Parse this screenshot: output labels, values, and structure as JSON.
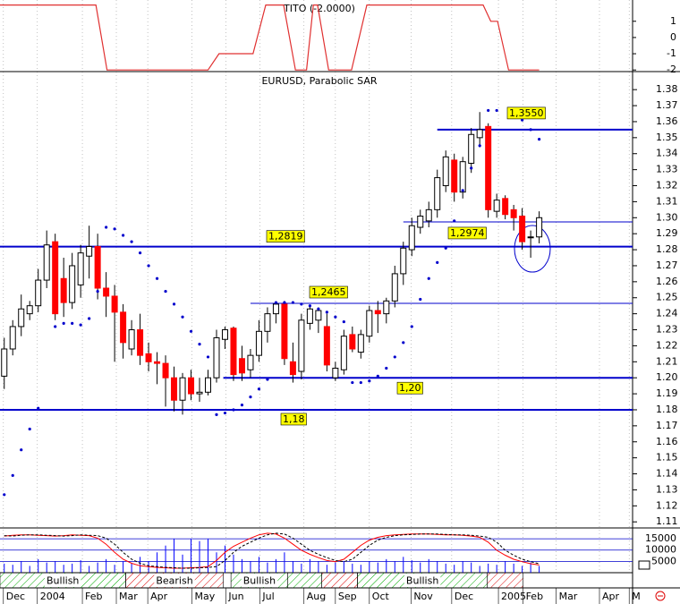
{
  "chart_data": [
    {
      "type": "line",
      "title": "TITO (-2.0000)",
      "color": "#e03030",
      "x": [
        -0.5,
        10.8,
        12.1,
        24.0,
        25.3,
        29.3,
        30.8,
        32.9,
        34.3,
        35.6,
        36.4,
        36.9,
        38.2,
        40.9,
        42.7,
        56.4,
        57.3,
        58.1,
        59.4,
        63.0
      ],
      "values": [
        2,
        2,
        -2,
        -2,
        -1,
        -1,
        2,
        2,
        -2,
        -2,
        2,
        2,
        -2,
        -2,
        2,
        2,
        1,
        1,
        -2,
        -2
      ],
      "xlim": [
        -0.5,
        74
      ],
      "ylim": [
        -2.1,
        2.2
      ],
      "yticks": [
        1,
        0,
        -1,
        -2
      ]
    },
    {
      "type": "candlestick",
      "title": "EURUSD, Parabolic SAR",
      "x": [
        0,
        1,
        2,
        3,
        4,
        5,
        6,
        7,
        8,
        9,
        10,
        11,
        12,
        13,
        14,
        15,
        16,
        17,
        18,
        19,
        20,
        21,
        22,
        23,
        24,
        25,
        26,
        27,
        28,
        29,
        30,
        31,
        32,
        33,
        34,
        35,
        36,
        37,
        38,
        39,
        40,
        41,
        42,
        43,
        44,
        45,
        46,
        47,
        48,
        49,
        50,
        51,
        52,
        53,
        54,
        55,
        56,
        57,
        58,
        59,
        60,
        61,
        62,
        63
      ],
      "open": [
        1.201,
        1.218,
        1.232,
        1.24,
        1.245,
        1.261,
        1.285,
        1.262,
        1.247,
        1.258,
        1.276,
        1.282,
        1.256,
        1.251,
        1.241,
        1.218,
        1.23,
        1.215,
        1.21,
        1.209,
        1.2,
        1.186,
        1.2,
        1.19,
        1.191,
        1.2,
        1.224,
        1.231,
        1.212,
        1.205,
        1.214,
        1.229,
        1.24,
        1.246,
        1.21,
        1.204,
        1.234,
        1.236,
        1.232,
        1.2,
        1.205,
        1.227,
        1.216,
        1.226,
        1.242,
        1.24,
        1.248,
        1.265,
        1.28,
        1.294,
        1.298,
        1.305,
        1.32,
        1.336,
        1.316,
        1.334,
        1.35,
        1.357,
        1.304,
        1.312,
        1.305,
        1.301,
        1.288,
        1.288
      ],
      "high": [
        1.225,
        1.236,
        1.252,
        1.248,
        1.268,
        1.292,
        1.29,
        1.275,
        1.278,
        1.283,
        1.295,
        1.29,
        1.266,
        1.258,
        1.246,
        1.236,
        1.24,
        1.222,
        1.216,
        1.214,
        1.207,
        1.203,
        1.205,
        1.2,
        1.205,
        1.23,
        1.232,
        1.232,
        1.22,
        1.218,
        1.236,
        1.244,
        1.247,
        1.248,
        1.222,
        1.24,
        1.245,
        1.244,
        1.24,
        1.21,
        1.23,
        1.232,
        1.23,
        1.245,
        1.248,
        1.25,
        1.27,
        1.285,
        1.3,
        1.305,
        1.31,
        1.33,
        1.342,
        1.34,
        1.338,
        1.356,
        1.366,
        1.359,
        1.315,
        1.314,
        1.308,
        1.306,
        1.292,
        1.304
      ],
      "low": [
        1.193,
        1.214,
        1.226,
        1.236,
        1.241,
        1.256,
        1.236,
        1.238,
        1.243,
        1.25,
        1.262,
        1.249,
        1.238,
        1.21,
        1.212,
        1.214,
        1.208,
        1.204,
        1.196,
        1.182,
        1.179,
        1.177,
        1.186,
        1.185,
        1.189,
        1.197,
        1.218,
        1.198,
        1.198,
        1.2,
        1.21,
        1.222,
        1.234,
        1.208,
        1.197,
        1.199,
        1.23,
        1.228,
        1.204,
        1.198,
        1.202,
        1.216,
        1.212,
        1.222,
        1.228,
        1.234,
        1.244,
        1.258,
        1.276,
        1.29,
        1.294,
        1.3,
        1.316,
        1.31,
        1.312,
        1.328,
        1.344,
        1.3,
        1.3,
        1.299,
        1.292,
        1.28,
        1.275,
        1.284
      ],
      "close": [
        1.218,
        1.232,
        1.243,
        1.245,
        1.261,
        1.283,
        1.24,
        1.247,
        1.27,
        1.278,
        1.282,
        1.256,
        1.251,
        1.241,
        1.222,
        1.23,
        1.214,
        1.21,
        1.209,
        1.2,
        1.186,
        1.2,
        1.19,
        1.191,
        1.2,
        1.225,
        1.23,
        1.202,
        1.203,
        1.214,
        1.229,
        1.24,
        1.246,
        1.212,
        1.202,
        1.236,
        1.243,
        1.242,
        1.208,
        1.206,
        1.226,
        1.218,
        1.227,
        1.242,
        1.24,
        1.248,
        1.265,
        1.281,
        1.295,
        1.301,
        1.305,
        1.325,
        1.338,
        1.316,
        1.335,
        1.352,
        1.355,
        1.305,
        1.311,
        1.302,
        1.3,
        1.285,
        1.288,
        1.3
      ],
      "up_color": "#ffffff",
      "down_color": "#ff0000",
      "sar_values": [
        1.127,
        1.139,
        1.155,
        1.168,
        1.181,
        null,
        1.232,
        1.234,
        1.234,
        1.233,
        1.237,
        1.254,
        1.294,
        1.293,
        1.289,
        1.285,
        1.278,
        1.27,
        1.262,
        1.254,
        1.246,
        1.238,
        1.229,
        1.221,
        1.213,
        1.177,
        1.178,
        1.18,
        1.183,
        1.188,
        1.193,
        1.199,
        1.247,
        1.247,
        1.247,
        1.246,
        1.245,
        1.243,
        1.241,
        1.238,
        1.235,
        1.197,
        1.197,
        1.198,
        1.201,
        1.206,
        1.213,
        1.222,
        1.232,
        1.249,
        1.262,
        1.272,
        1.281,
        1.298,
        1.317,
        1.331,
        1.345,
        1.367,
        1.367,
        null,
        null,
        1.361,
        1.355,
        1.349
      ],
      "sar_color": "#0000cc",
      "levels": [
        {
          "value": 1.355,
          "label": "1,3550",
          "from": 51,
          "width": 2
        },
        {
          "value": 1.2974,
          "label": "1,2974",
          "from": 47,
          "width": 1
        },
        {
          "value": 1.2819,
          "label": "1,2819",
          "from": -0.5,
          "width": 2
        },
        {
          "value": 1.2465,
          "label": "1,2465",
          "from": 29,
          "width": 1
        },
        {
          "value": 1.2,
          "label": "1,20",
          "from": 25.8,
          "width": 2
        },
        {
          "value": 1.18,
          "label": "1,18",
          "from": -0.5,
          "width": 2
        }
      ],
      "level_color": "#0000cc",
      "label_color": "#ffff00",
      "xlim": [
        -0.5,
        74
      ],
      "ylim": [
        1.1062,
        1.3896
      ],
      "yticks": [
        1.38,
        1.37,
        1.36,
        1.35,
        1.34,
        1.33,
        1.32,
        1.31,
        {
          "value": 1.3,
          "label": "1.30"
        },
        1.29,
        1.28,
        1.27,
        1.26,
        1.25,
        1.24,
        1.23,
        1.22,
        1.21,
        {
          "value": 1.2,
          "label": "1.20"
        },
        1.19,
        1.18,
        1.17,
        1.16,
        1.15,
        1.14,
        1.13,
        1.12,
        1.11
      ]
    },
    {
      "type": "volume",
      "x": [
        0,
        1,
        2,
        3,
        4,
        5,
        6,
        7,
        8,
        9,
        10,
        11,
        12,
        13,
        14,
        15,
        16,
        17,
        18,
        19,
        20,
        21,
        22,
        23,
        24,
        25,
        26,
        27,
        28,
        29,
        30,
        31,
        32,
        33,
        34,
        35,
        36,
        37,
        38,
        39,
        40,
        41,
        42,
        43,
        44,
        45,
        46,
        47,
        48,
        49,
        50,
        51,
        52,
        53,
        54,
        55,
        56,
        57,
        58,
        59,
        60,
        61,
        62,
        63
      ],
      "values": [
        4000,
        3500,
        5000,
        3000,
        6000,
        4500,
        5000,
        3500,
        4000,
        5500,
        3000,
        4500,
        6000,
        3500,
        5000,
        4000,
        7000,
        5000,
        9000,
        12000,
        15000,
        8000,
        15000,
        14000,
        15000,
        9000,
        12000,
        8000,
        6000,
        5000,
        7000,
        4500,
        6000,
        9000,
        5000,
        4000,
        6000,
        5000,
        3500,
        4500,
        5000,
        4000,
        3500,
        5000,
        4500,
        6000,
        5000,
        7000,
        5500,
        4500,
        6000,
        5000,
        4000,
        3500,
        5000,
        4500,
        3000,
        4000,
        3500,
        5000,
        4000,
        3000,
        4500,
        3000
      ],
      "color": "#0000ff",
      "series": [
        {
          "color": "#ff0000",
          "axis": "y2",
          "values": [
            85,
            87,
            88,
            88,
            87,
            86,
            85,
            86,
            88,
            87,
            86,
            80,
            65,
            45,
            28,
            18,
            12,
            10,
            8,
            7,
            6,
            6,
            7,
            8,
            10,
            25,
            45,
            60,
            70,
            80,
            88,
            92,
            90,
            80,
            65,
            50,
            40,
            32,
            25,
            22,
            28,
            45,
            62,
            75,
            82,
            86,
            88,
            89,
            90,
            90,
            90,
            89,
            88,
            88,
            87,
            85,
            82,
            70,
            50,
            38,
            28,
            22,
            17,
            14
          ]
        },
        {
          "color": "#000000",
          "axis": "y2",
          "dashed": true,
          "values": [
            86,
            85,
            87,
            88,
            88,
            87,
            86,
            85,
            86,
            88,
            87,
            86,
            80,
            65,
            45,
            28,
            18,
            12,
            10,
            8,
            7,
            6,
            6,
            7,
            8,
            10,
            25,
            45,
            60,
            70,
            80,
            88,
            92,
            90,
            80,
            65,
            50,
            40,
            32,
            25,
            22,
            28,
            45,
            62,
            75,
            82,
            86,
            88,
            89,
            90,
            90,
            90,
            89,
            88,
            88,
            87,
            85,
            82,
            70,
            50,
            38,
            28,
            22,
            17
          ]
        }
      ],
      "xlim": [
        -0.5,
        74
      ],
      "ylim": [
        0,
        19800
      ],
      "yticks": [
        15000,
        10000,
        5000
      ],
      "y2lim": [
        -5,
        105
      ]
    },
    {
      "type": "bands",
      "bands": [
        {
          "label": "Bullish",
          "from": -0.5,
          "to": 14.3,
          "color": "#00aa00"
        },
        {
          "label": "Bearish",
          "from": 14.3,
          "to": 25.8,
          "color": "#dd0000"
        },
        {
          "label": "Bullish",
          "from": 26.7,
          "to": 33.4,
          "color": "#00aa00"
        },
        {
          "from": 33.4,
          "to": 37.4,
          "color": "#00aa00"
        },
        {
          "from": 37.4,
          "to": 41.6,
          "color": "#dd0000"
        },
        {
          "label": "Bullish",
          "from": 41.6,
          "to": 56.9,
          "color": "#00aa00"
        },
        {
          "from": 56.9,
          "to": 61.1,
          "color": "#dd0000"
        }
      ],
      "xlim": [
        -0.5,
        74
      ],
      "xticks": [
        {
          "value": -0.1,
          "label": "Dec"
        },
        {
          "value": 3.9,
          "label": "2004"
        },
        {
          "value": 9.2,
          "label": "Feb"
        },
        {
          "value": 13.2,
          "label": "Mar"
        },
        {
          "value": 16.9,
          "label": "Apr"
        },
        {
          "value": 22.1,
          "label": "May"
        },
        {
          "value": 26.1,
          "label": "Jun"
        },
        {
          "value": 30.1,
          "label": "Jul"
        },
        {
          "value": 35.3,
          "label": "Aug"
        },
        {
          "value": 39.0,
          "label": "Sep"
        },
        {
          "value": 43.0,
          "label": "Oct"
        },
        {
          "value": 47.9,
          "label": "Nov"
        },
        {
          "value": 52.7,
          "label": "Dec"
        },
        {
          "value": 58.2,
          "label": "2005"
        },
        {
          "value": 61.1,
          "label": "Feb"
        },
        {
          "value": 65.0,
          "label": "Mar"
        },
        {
          "value": 70.1,
          "label": "Apr"
        },
        {
          "value": 73.6,
          "label": "M"
        }
      ]
    }
  ]
}
